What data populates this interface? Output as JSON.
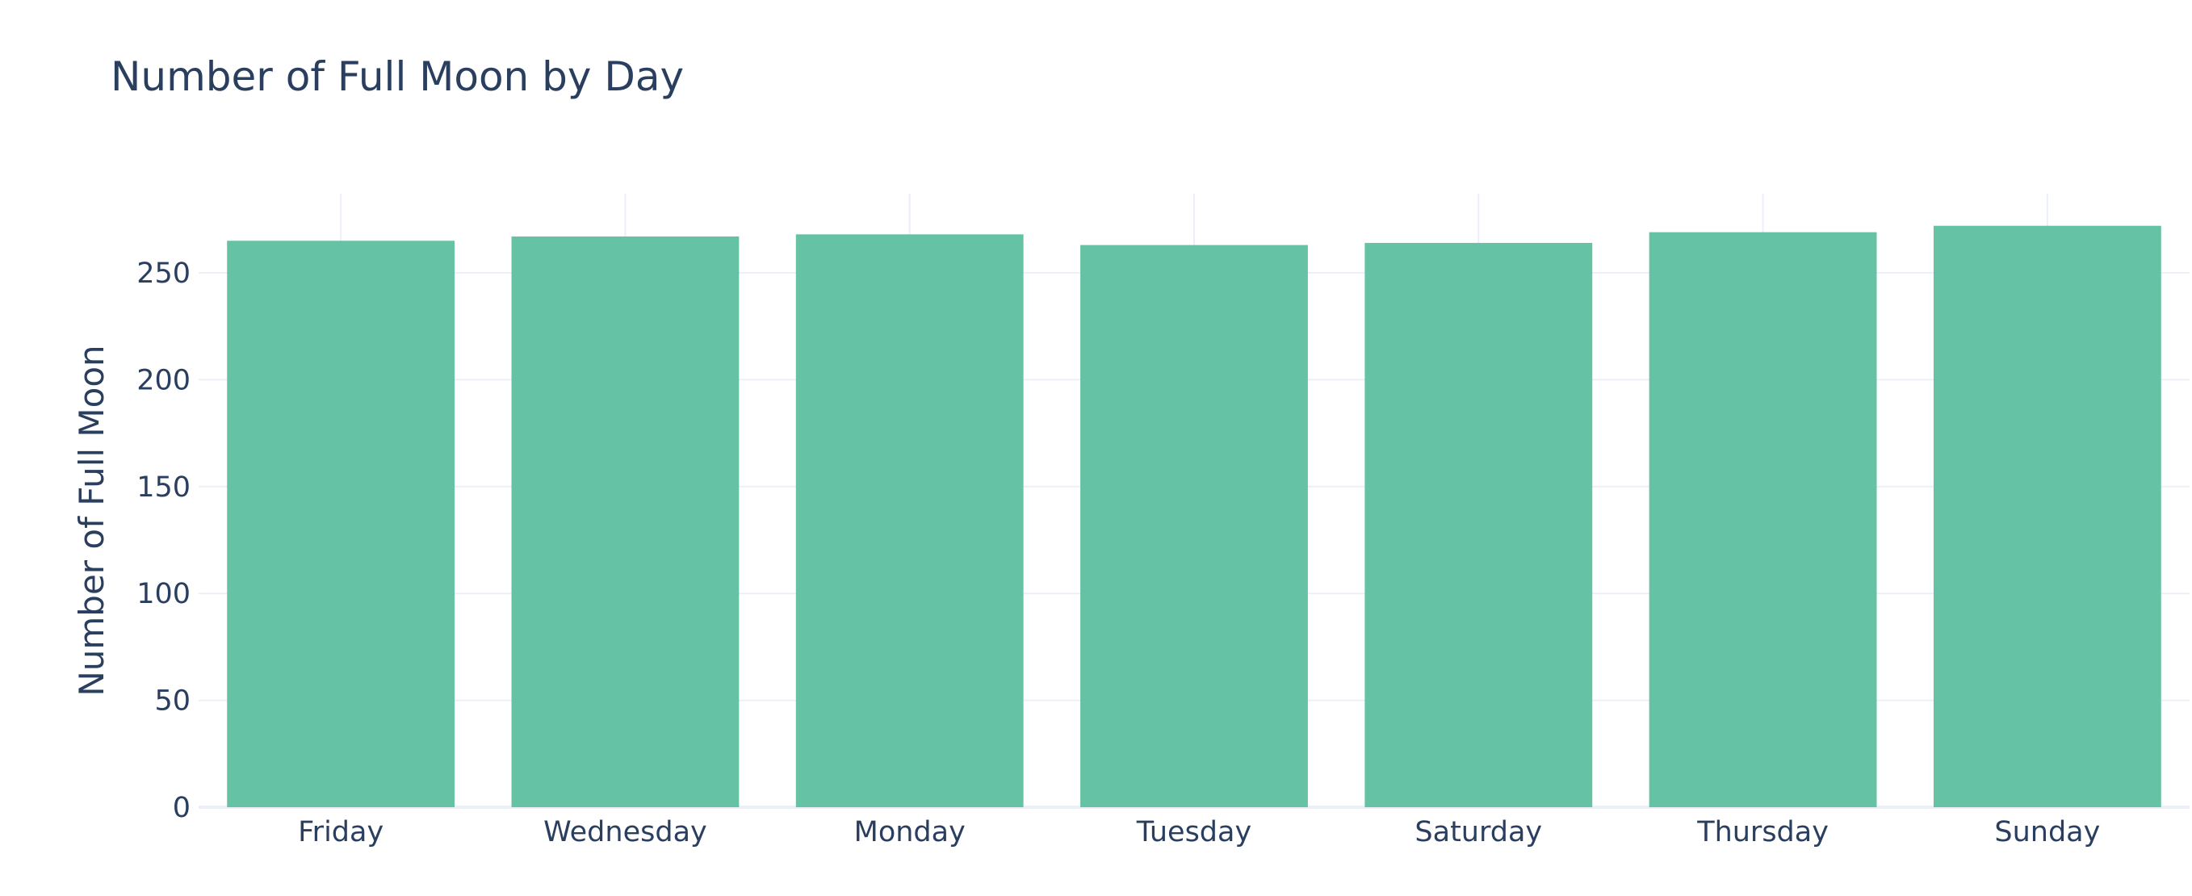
{
  "chart_data": {
    "type": "bar",
    "title": "Number of Full Moon by Day",
    "xlabel": "",
    "ylabel": "Number of Full Moon",
    "categories": [
      "Friday",
      "Wednesday",
      "Monday",
      "Tuesday",
      "Saturday",
      "Thursday",
      "Sunday"
    ],
    "values": [
      265,
      267,
      268,
      263,
      264,
      269,
      272
    ],
    "ylim": [
      0,
      287
    ],
    "yticks": [
      0,
      50,
      100,
      150,
      200,
      250
    ],
    "grid": true,
    "legend": "none",
    "colors": {
      "bar": "#66c2a5",
      "grid": "#ebf0f8",
      "text": "#2a3f5f",
      "background": "#ffffff"
    }
  }
}
